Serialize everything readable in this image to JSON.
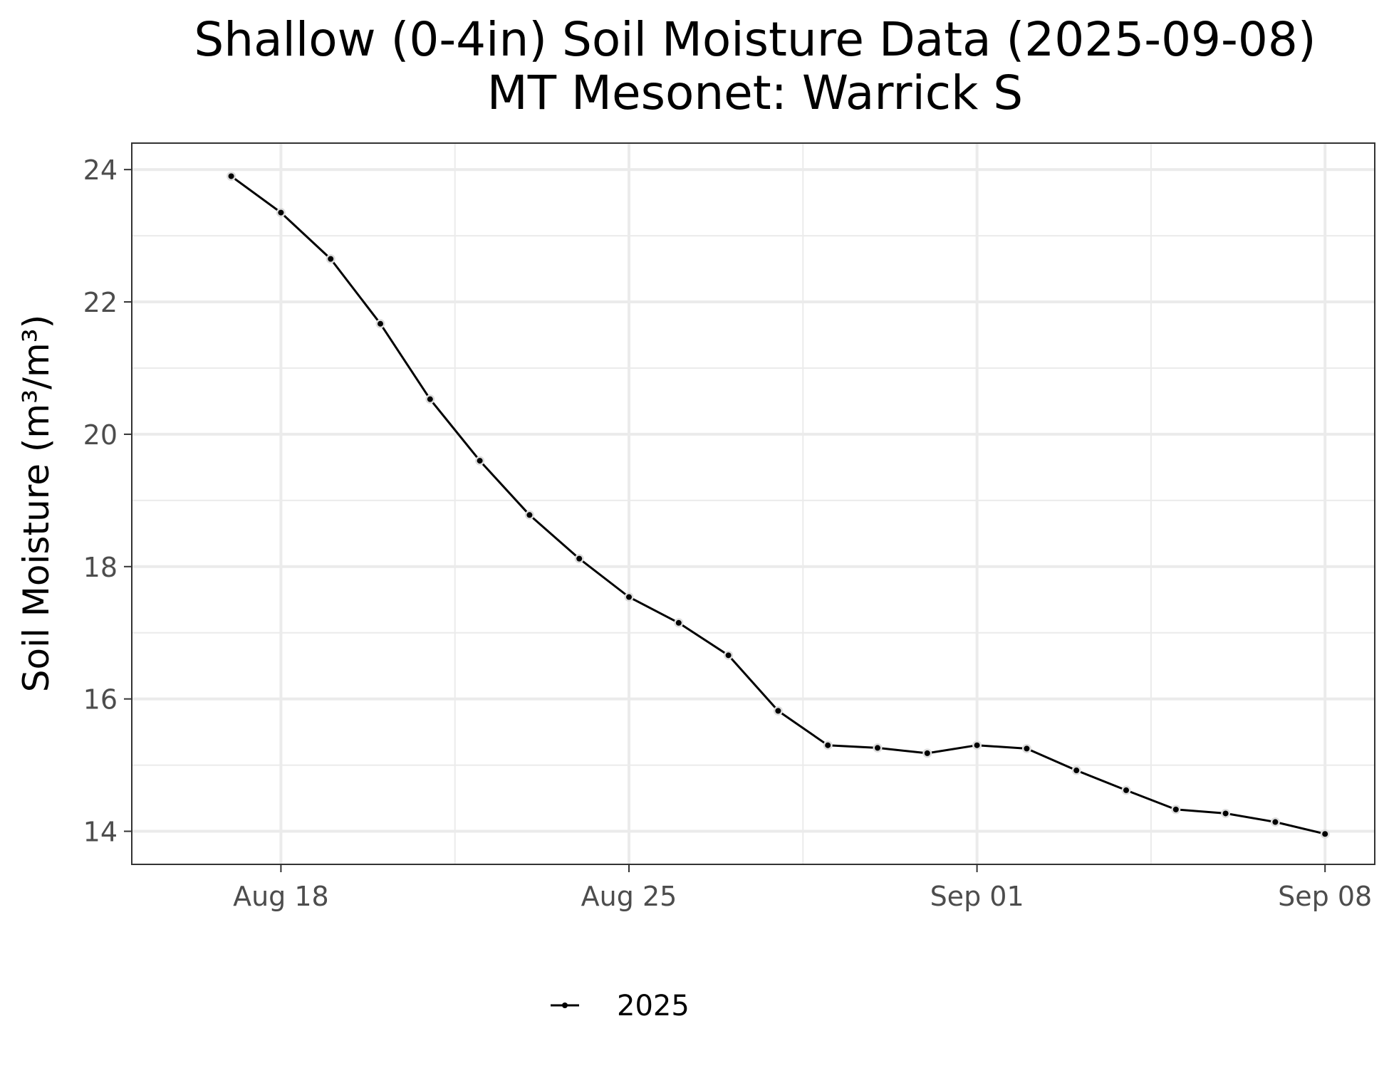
{
  "chart_data": {
    "type": "line",
    "title": "Shallow (0-4in) Soil Moisture Data (2025-09-08)",
    "subtitle": "MT Mesonet: Warrick S",
    "xlabel": "",
    "ylabel": "Soil Moisture (m³/m³)",
    "x_tick_labels": [
      "Aug 18",
      "Aug 25",
      "Sep 01",
      "Sep 08"
    ],
    "x_tick_dates": [
      "2025-08-18",
      "2025-08-25",
      "2025-09-01",
      "2025-09-08"
    ],
    "xlim": [
      "2025-08-15",
      "2025-09-09"
    ],
    "y_ticks": [
      14,
      16,
      18,
      20,
      22,
      24
    ],
    "ylim": [
      13.5,
      24.4
    ],
    "grid": true,
    "legend_position": "bottom",
    "series": [
      {
        "name": "2025",
        "color": "#000000",
        "x": [
          "2025-08-17",
          "2025-08-18",
          "2025-08-19",
          "2025-08-20",
          "2025-08-21",
          "2025-08-22",
          "2025-08-23",
          "2025-08-24",
          "2025-08-25",
          "2025-08-26",
          "2025-08-27",
          "2025-08-28",
          "2025-08-29",
          "2025-08-30",
          "2025-08-31",
          "2025-09-01",
          "2025-09-02",
          "2025-09-03",
          "2025-09-04",
          "2025-09-05",
          "2025-09-06",
          "2025-09-07",
          "2025-09-08"
        ],
        "y": [
          23.9,
          23.35,
          22.65,
          21.67,
          20.53,
          19.6,
          18.78,
          18.12,
          17.54,
          17.15,
          16.66,
          15.82,
          15.3,
          15.26,
          15.18,
          15.3,
          15.25,
          14.92,
          14.62,
          14.33,
          14.27,
          14.14,
          13.96
        ]
      }
    ]
  }
}
